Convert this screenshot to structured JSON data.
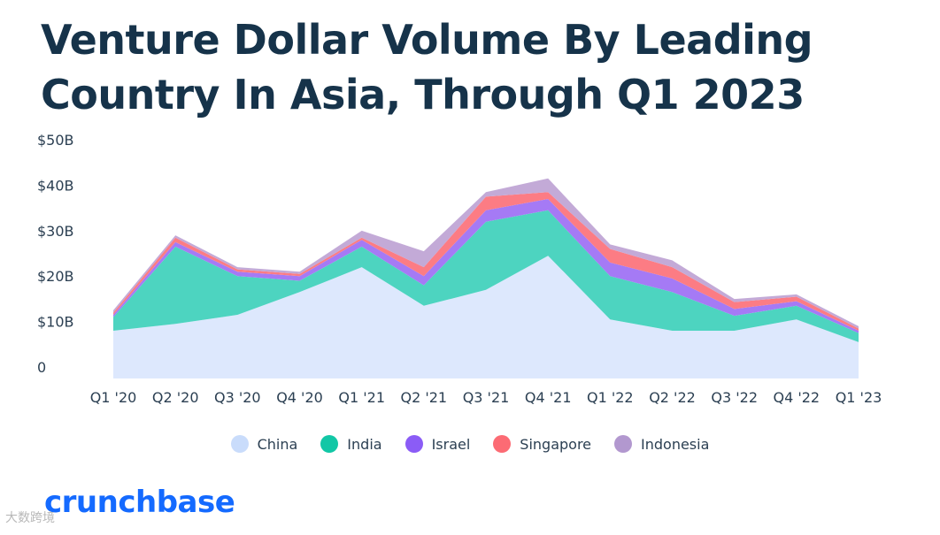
{
  "title_lines": [
    "Venture Dollar Volume By Leading",
    "Country In Asia, Through Q1 2023"
  ],
  "brand": "crunchbase",
  "watermark": "大数跨境",
  "colors": {
    "China": "#dde8fd",
    "India": "#4dd4c0",
    "Israel": "#a57af5",
    "Singapore": "#fc7c84",
    "Indonesia": "#c3aad7",
    "title": "#16334a",
    "brand": "#146aff"
  },
  "legend_swatch_colors": {
    "China": "#c9dcfb",
    "India": "#12c7a6",
    "Israel": "#8b5cf6",
    "Singapore": "#fc6b74",
    "Indonesia": "#b298cf"
  },
  "chart_data": {
    "type": "area",
    "stacked": true,
    "title": "Venture Dollar Volume By Leading Country In Asia, Through Q1 2023",
    "xlabel": "",
    "ylabel": "",
    "categories": [
      "Q1 '20",
      "Q2 '20",
      "Q3 '20",
      "Q4 '20",
      "Q1 '21",
      "Q2 '21",
      "Q3 '21",
      "Q4 '21",
      "Q1 '22",
      "Q2 '22",
      "Q3 '22",
      "Q4 '22",
      "Q1 '23"
    ],
    "series": [
      {
        "name": "China",
        "values": [
          10.5,
          12,
          14,
          19,
          24.5,
          16,
          19.5,
          27,
          13,
          10.5,
          10.5,
          13,
          8
        ]
      },
      {
        "name": "India",
        "values": [
          3,
          17,
          8.5,
          2.5,
          4.5,
          4.5,
          15,
          10,
          9.5,
          8.5,
          3.3,
          3,
          2
        ]
      },
      {
        "name": "Israel",
        "values": [
          0.5,
          1,
          1,
          1,
          1.5,
          2,
          2.5,
          2.5,
          3,
          3,
          1.5,
          1,
          0.5
        ]
      },
      {
        "name": "Singapore",
        "values": [
          0.5,
          1,
          0.5,
          0.5,
          0.5,
          2,
          3,
          1.5,
          3,
          2.5,
          1.5,
          1,
          0.5
        ]
      },
      {
        "name": "Indonesia",
        "values": [
          0.5,
          0.5,
          0.5,
          0.5,
          1.5,
          3.5,
          1,
          3,
          1,
          1.5,
          0.7,
          0.5,
          0.5
        ]
      }
    ],
    "yticks": [
      "0",
      "$10B",
      "$20B",
      "$30B",
      "$40B",
      "$50B"
    ],
    "ytick_values": [
      0,
      10,
      20,
      30,
      40,
      50
    ],
    "ylim": [
      0,
      50
    ],
    "grid": false,
    "legend_position": "bottom-center"
  }
}
